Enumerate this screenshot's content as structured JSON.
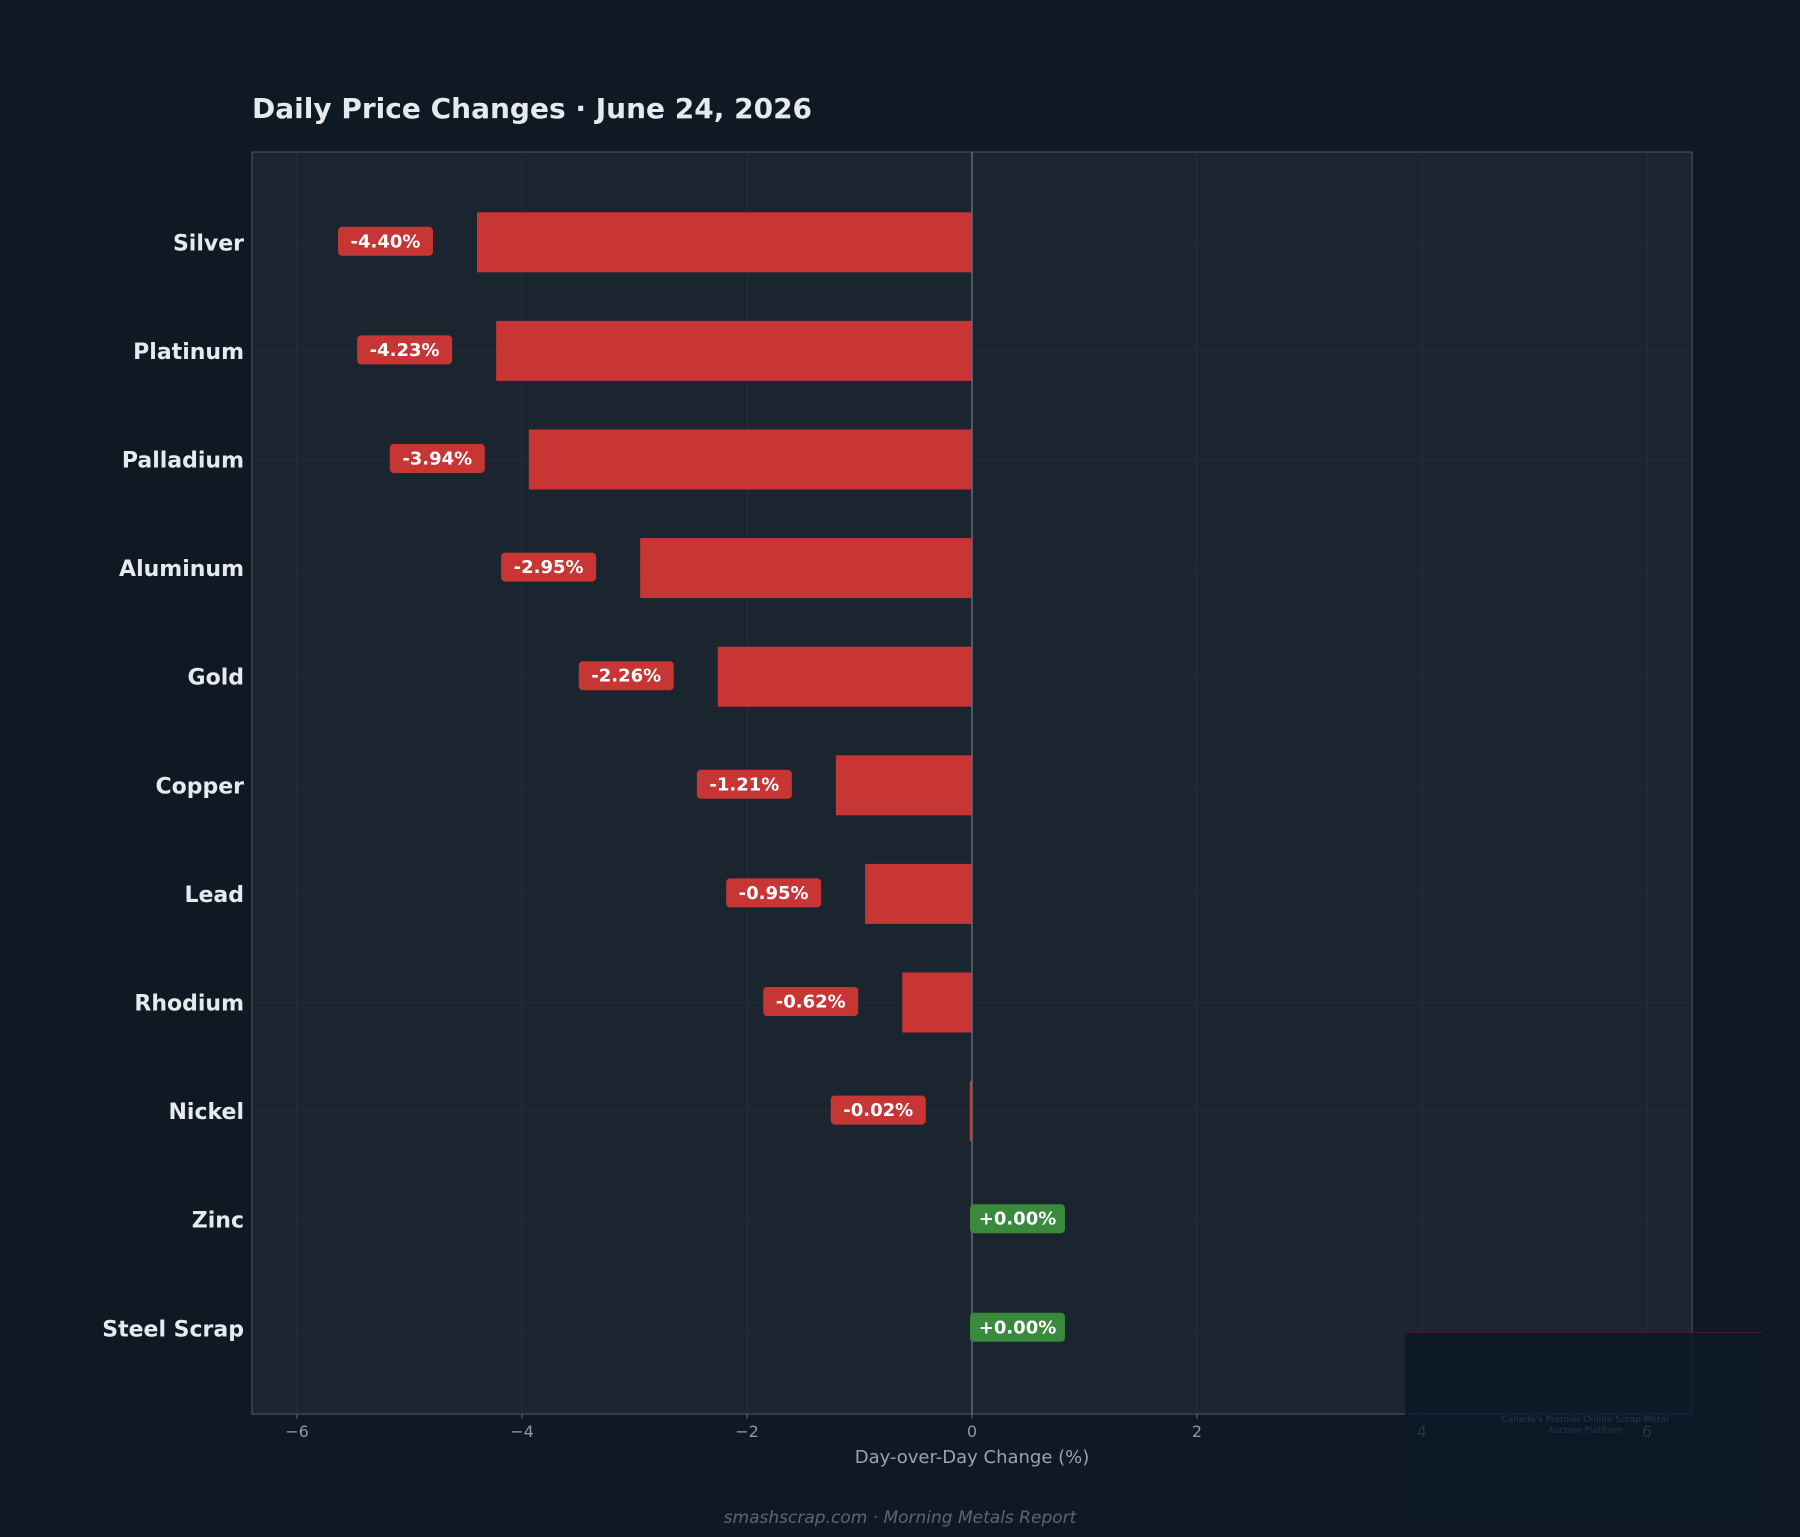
{
  "chart_data": {
    "type": "bar",
    "orientation": "horizontal",
    "title": "Daily Price Changes  ·  June 24, 2026",
    "xlabel": "Day-over-Day Change (%)",
    "ylabel": "",
    "xlim": [
      -6.4,
      6.4
    ],
    "xticks": [
      -6,
      -4,
      -2,
      0,
      2,
      4,
      6
    ],
    "xtick_labels": [
      "−6",
      "−4",
      "−2",
      "0",
      "2",
      "4",
      "6"
    ],
    "grid": true,
    "categories": [
      "Silver",
      "Platinum",
      "Palladium",
      "Aluminum",
      "Gold",
      "Copper",
      "Lead",
      "Rhodium",
      "Nickel",
      "Zinc",
      "Steel Scrap"
    ],
    "values": [
      -4.4,
      -4.23,
      -3.94,
      -2.95,
      -2.26,
      -1.21,
      -0.95,
      -0.62,
      -0.02,
      0.0,
      0.0
    ],
    "data_labels": [
      "-4.40%",
      "-4.23%",
      "-3.94%",
      "-2.95%",
      "-2.26%",
      "-1.21%",
      "-0.95%",
      "-0.62%",
      "-0.02%",
      "+0.00%",
      "+0.00%"
    ]
  },
  "colors": {
    "negative": "#c73535",
    "positive": "#3a8a3e",
    "plot_background": "#1b2530",
    "page_background": "#0f1923"
  },
  "footer": "smashscrap.com  ·  Morning Metals Report",
  "watermark_text": "Canada's Premier Online Scrap Metal Auction Platform"
}
